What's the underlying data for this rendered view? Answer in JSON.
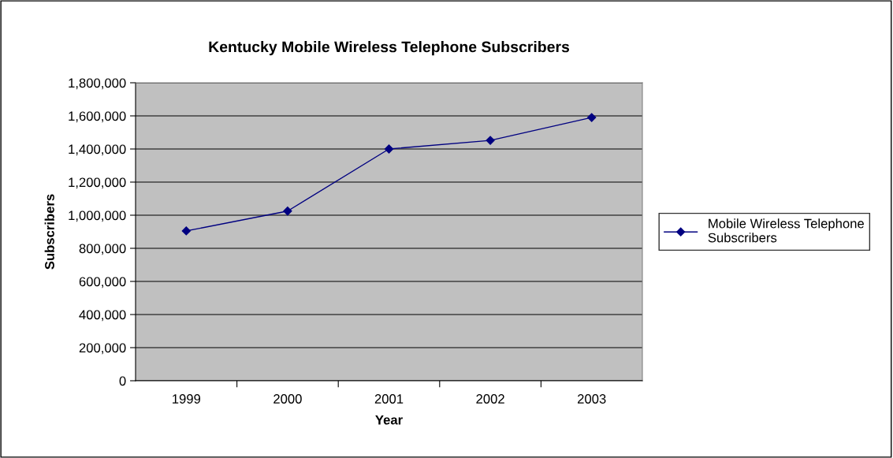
{
  "chart_data": {
    "type": "line",
    "title": "Kentucky Mobile Wireless Telephone Subscribers",
    "xlabel": "Year",
    "ylabel": "Subscribers",
    "categories": [
      "1999",
      "2000",
      "2001",
      "2002",
      "2003"
    ],
    "series": [
      {
        "name": "Mobile Wireless Telephone Subscribers",
        "color": "#000080",
        "values": [
          905000,
          1025000,
          1400000,
          1452000,
          1590000
        ]
      }
    ],
    "ylim": [
      0,
      1800000
    ],
    "yticks": [
      {
        "value": 0,
        "label": "0"
      },
      {
        "value": 200000,
        "label": "200,000"
      },
      {
        "value": 400000,
        "label": "400,000"
      },
      {
        "value": 600000,
        "label": "600,000"
      },
      {
        "value": 800000,
        "label": "800,000"
      },
      {
        "value": 1000000,
        "label": "1,000,000"
      },
      {
        "value": 1200000,
        "label": "1,200,000"
      },
      {
        "value": 1400000,
        "label": "1,400,000"
      },
      {
        "value": 1600000,
        "label": "1,600,000"
      },
      {
        "value": 1800000,
        "label": "1,800,000"
      }
    ],
    "grid": "y",
    "legend": "right",
    "marker": "diamond",
    "line_style": "solid"
  }
}
